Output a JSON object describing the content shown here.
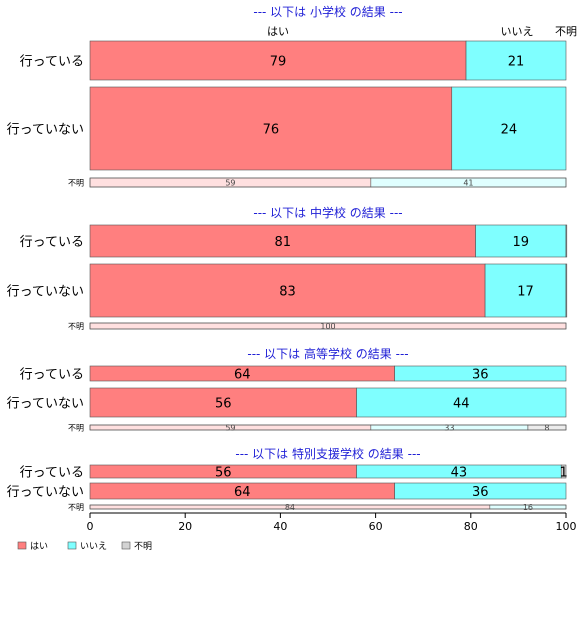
{
  "chart_data": {
    "type": "bar",
    "orientation": "horizontal",
    "stacked": "percent",
    "column_labels": [
      "はい",
      "いいえ",
      "不明"
    ],
    "colors": {
      "yes": "#ff7f7f",
      "no": "#7fffff",
      "unknown": "#d3d3d3"
    },
    "xlim": [
      0,
      100
    ],
    "x_ticks": [
      "0",
      "20",
      "40",
      "60",
      "80",
      "100"
    ],
    "legend": {
      "placement": "bottom-left",
      "entries": [
        "はい",
        "いいえ",
        "不明"
      ]
    },
    "panels": [
      {
        "title": "--- 以下は 小学校 の結果 ---",
        "rows": [
          {
            "label": "行っている",
            "values": [
              79,
              21,
              0
            ],
            "labels": [
              "79",
              "21",
              ""
            ]
          },
          {
            "label": "行っていない",
            "values": [
              76,
              24,
              0
            ],
            "labels": [
              "76",
              "24",
              ""
            ]
          },
          {
            "label": "不明",
            "values": [
              59,
              41,
              0
            ],
            "labels": [
              "59",
              "41",
              ""
            ]
          }
        ]
      },
      {
        "title": "--- 以下は 中学校 の結果 ---",
        "rows": [
          {
            "label": "行っている",
            "values": [
              81,
              19,
              0.3
            ],
            "labels": [
              "81",
              "19",
              ""
            ]
          },
          {
            "label": "行っていない",
            "values": [
              83,
              17,
              0.3
            ],
            "labels": [
              "83",
              "17",
              ""
            ]
          },
          {
            "label": "不明",
            "values": [
              100,
              0,
              0
            ],
            "labels": [
              "100",
              "",
              ""
            ]
          }
        ]
      },
      {
        "title": "--- 以下は 高等学校 の結果 ---",
        "rows": [
          {
            "label": "行っている",
            "values": [
              64,
              36,
              0
            ],
            "labels": [
              "64",
              "36",
              ""
            ]
          },
          {
            "label": "行っていない",
            "values": [
              56,
              44,
              0
            ],
            "labels": [
              "56",
              "44",
              ""
            ]
          },
          {
            "label": "不明",
            "values": [
              59,
              33,
              8
            ],
            "labels": [
              "59",
              "33",
              "8"
            ]
          }
        ]
      },
      {
        "title": "--- 以下は 特別支援学校 の結果 ---",
        "rows": [
          {
            "label": "行っている",
            "values": [
              56,
              43,
              1
            ],
            "labels": [
              "56",
              "43",
              "1"
            ]
          },
          {
            "label": "行っていない",
            "values": [
              64,
              36,
              0
            ],
            "labels": [
              "64",
              "36",
              ""
            ]
          },
          {
            "label": "不明",
            "values": [
              84,
              16,
              0
            ],
            "labels": [
              "84",
              "16",
              ""
            ]
          }
        ]
      }
    ]
  }
}
